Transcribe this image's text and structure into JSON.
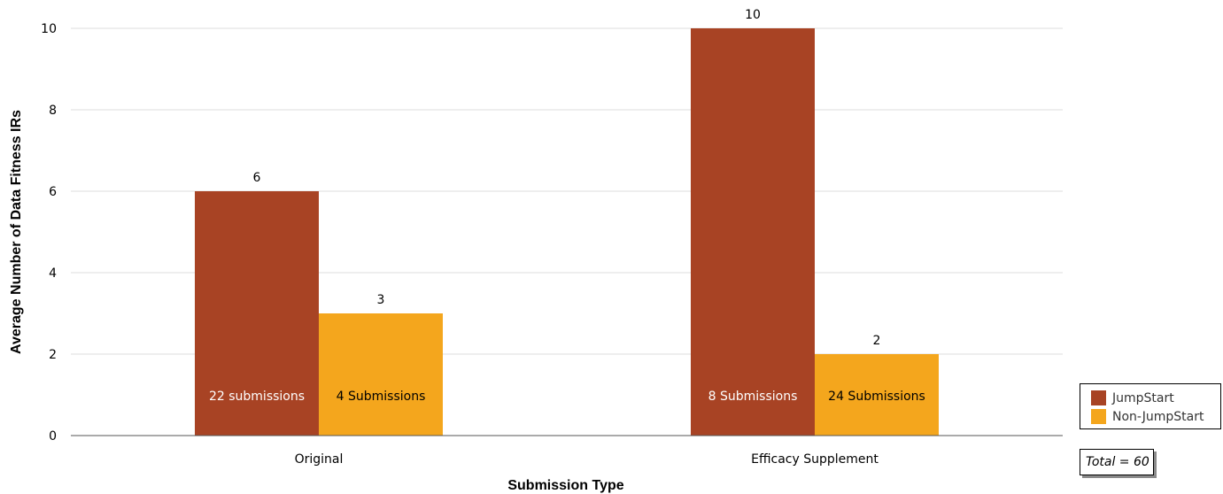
{
  "chart_data": {
    "type": "bar",
    "categories": [
      "Original",
      "Efficacy Supplement"
    ],
    "series": [
      {
        "name": "JumpStart",
        "color": "#a84324",
        "values": [
          6,
          10
        ],
        "inner_labels": [
          "22 submissions",
          "8 Submissions"
        ]
      },
      {
        "name": "Non-JumpStart",
        "color": "#f4a61d",
        "values": [
          3,
          2
        ],
        "inner_labels": [
          "4 Submissions",
          "24 Submissions"
        ]
      }
    ],
    "title": "",
    "xlabel": "Submission Type",
    "ylabel": "Average Number of Data Fitness IRs",
    "ylim": [
      0,
      10
    ],
    "yticks": [
      0,
      2,
      4,
      6,
      8,
      10
    ],
    "grid": true,
    "legend_position": "bottom-right",
    "annotation": "Total = 60"
  }
}
